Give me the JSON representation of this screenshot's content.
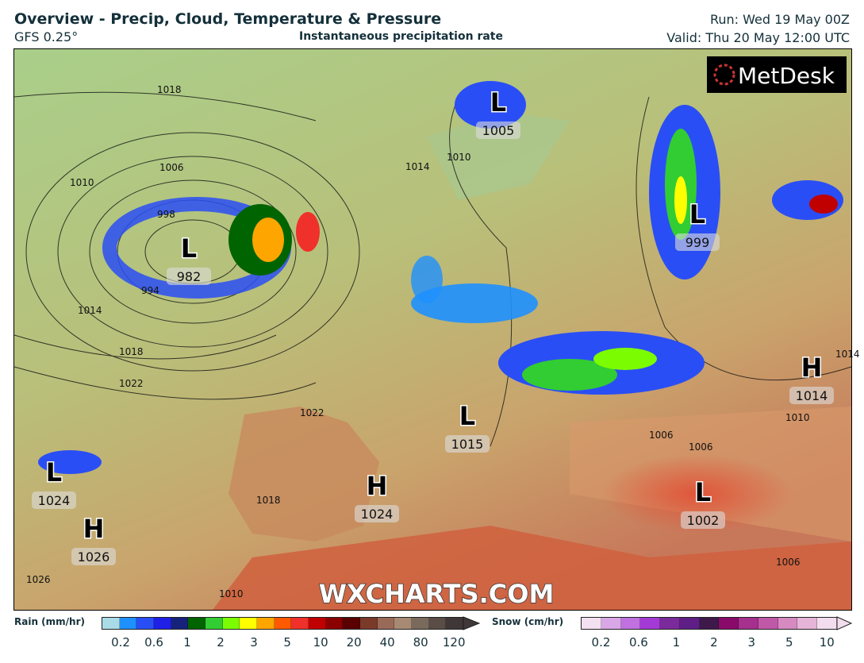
{
  "header": {
    "title": "Overview - Precip, Cloud, Temperature & Pressure",
    "model": "GFS 0.25°",
    "subtitle": "Instantaneous precipitation rate",
    "run": "Run: Wed 19 May 00Z",
    "valid": "Valid: Thu 20 May 12:00 UTC"
  },
  "map": {
    "logo": "MetDesk",
    "watermark": "WXCHARTS.COM",
    "pressure_centers": [
      {
        "type": "L",
        "value": "1005"
      },
      {
        "type": "L",
        "value": "982"
      },
      {
        "type": "L",
        "value": "999"
      },
      {
        "type": "H",
        "value": "1014"
      },
      {
        "type": "L",
        "value": "1015"
      },
      {
        "type": "L",
        "value": "1024"
      },
      {
        "type": "H",
        "value": "1024"
      },
      {
        "type": "H",
        "value": "1026"
      },
      {
        "type": "L",
        "value": "1002"
      }
    ],
    "isobar_labels": [
      "1018",
      "1006",
      "1010",
      "998",
      "994",
      "1014",
      "1018",
      "1022",
      "1014",
      "1010",
      "1022",
      "1018",
      "1026",
      "1010",
      "1010",
      "1014",
      "1006",
      "1006",
      "1006"
    ]
  },
  "legend": {
    "rain": {
      "label": "Rain (mm/hr)",
      "ticks": [
        "0.2",
        "0.6",
        "1",
        "2",
        "3",
        "5",
        "10",
        "20",
        "40",
        "80",
        "120"
      ],
      "colors": [
        "#a9dce6",
        "#1e90ff",
        "#2a4ef5",
        "#1f1fe6",
        "#17237a",
        "#006400",
        "#32cd32",
        "#7cfc00",
        "#ffff00",
        "#ffa500",
        "#ff5a00",
        "#f0302a",
        "#c00000",
        "#8b0000",
        "#5a0000",
        "#7a3a2a",
        "#9a6a58",
        "#a88a74",
        "#7a6a5c",
        "#5a4c46",
        "#403838"
      ]
    },
    "snow": {
      "label": "Snow (cm/hr)",
      "ticks": [
        "0.2",
        "0.6",
        "1",
        "2",
        "3",
        "5",
        "10"
      ],
      "colors": [
        "#f3e0f0",
        "#d9a6e6",
        "#c070e0",
        "#a43ad6",
        "#7a2a9a",
        "#5e1e86",
        "#3e1a4a",
        "#8a0a6a",
        "#a6308e",
        "#c058a8",
        "#d68ac0",
        "#e6b4d8",
        "#f2dcee"
      ]
    }
  }
}
